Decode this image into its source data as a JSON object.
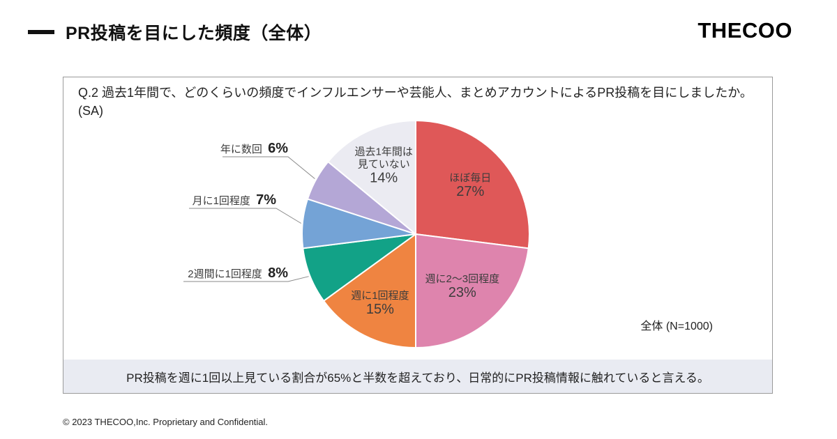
{
  "header": {
    "title": "PR投稿を目にした頻度（全体）",
    "logo": "THECOO"
  },
  "panel": {
    "question_line1": "Q.2 過去1年間で、どのくらいの頻度でインフルエンサーや芸能人、まとめアカウントによるPR投稿を目にしましたか。",
    "question_line2": "(SA)",
    "n_label": "全体 (N=1000)",
    "summary": "PR投稿を週に1回以上見ている割合が65%と半数を超えており、日常的にPR投稿情報に触れていると言える。"
  },
  "chart_data": {
    "type": "pie",
    "title": "PR投稿を目にした頻度（全体）",
    "categories": [
      "ほぼ毎日",
      "週に2～3回程度",
      "週に1回程度",
      "2週間に1回程度",
      "月に1回程度",
      "年に数回",
      "過去1年間は見ていない"
    ],
    "values": [
      27,
      23,
      15,
      8,
      7,
      6,
      14
    ],
    "unit": "%",
    "colors": [
      "#df5858",
      "#de84ad",
      "#ef8441",
      "#12a287",
      "#74a3d6",
      "#b4a7d6",
      "#ebebf2"
    ],
    "start_angle_deg": 0,
    "direction": "clockwise",
    "legend_position": "none",
    "label_style": "category name with percent; small slices labeled outside with leader lines",
    "sample_size": "N=1000"
  },
  "footer": {
    "copyright": "© 2023 THECOO,Inc. Proprietary and Confidential."
  }
}
